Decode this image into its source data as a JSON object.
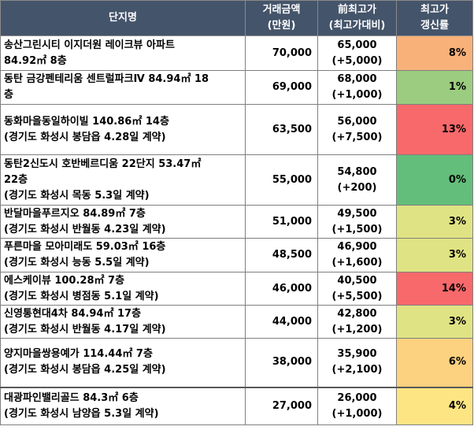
{
  "header": {
    "name": "단지명",
    "price_line1": "거래금액",
    "price_line2": "(만원)",
    "prev_line1": "前최고가",
    "prev_line2": "(최고가대비)",
    "rate_line1": "최고가",
    "rate_line2": "갱신률"
  },
  "rows": [
    {
      "name1": "송산그린시티 이지더원 레이크뷰 아파트",
      "name2": "84.92㎡ 8층",
      "price": "70,000",
      "prev1": "65,000",
      "prev2": "(+5,000)",
      "rate": "8%",
      "color": "#f8b179"
    },
    {
      "name1": "동탄 금강펜테리움 센트럴파크Ⅳ 84.94㎡ 18",
      "name2": "층",
      "price": "69,000",
      "prev1": "68,000",
      "prev2": "(+1,000)",
      "rate": "1%",
      "color": "#9bcc7f"
    },
    {
      "name1": "동화마을동일하이빌 140.86㎡ 14층",
      "name2": "(경기도 화성시 봉담읍 4.28일 계약)",
      "price": "63,500",
      "prev1": "56,000",
      "prev2": "(+7,500)",
      "rate": "13%",
      "color": "#f8696b"
    },
    {
      "name1": "동탄2신도시 호반베르디움 22단지 53.47㎡",
      "name2": "22층",
      "name3": "(경기도 화성시 목동 5.3일 계약)",
      "price": "55,000",
      "prev1": "54,800",
      "prev2": "(+200)",
      "rate": "0%",
      "color": "#63be7b"
    },
    {
      "name1": "반달마을푸르지오 84.89㎡ 7층",
      "name2": "(경기도 화성시 반월동 4.23일 계약)",
      "price": "51,000",
      "prev1": "49,500",
      "prev2": "(+1,500)",
      "rate": "3%",
      "color": "#e0e383"
    },
    {
      "name1": "푸른마을 모아미래도 59.03㎡ 16층",
      "name2": "(경기도 화성시 능동 5.5일 계약)",
      "price": "48,500",
      "prev1": "46,900",
      "prev2": "(+1,600)",
      "rate": "3%",
      "color": "#e0e383"
    },
    {
      "name1": "에스케이뷰 100.28㎡ 7층",
      "name2": "(경기도 화성시 병점동 5.1일 계약)",
      "price": "46,000",
      "prev1": "40,500",
      "prev2": "(+5,500)",
      "rate": "14%",
      "color": "#f8696b"
    },
    {
      "name1": "신영통현대4차 84.94㎡ 17층",
      "name2": "(경기도 화성시 반월동 4.17일 계약)",
      "price": "44,000",
      "prev1": "42,800",
      "prev2": "(+1,200)",
      "rate": "3%",
      "color": "#e0e383"
    },
    {
      "name1": "양지마을쌍용예가 114.44㎡ 7층",
      "name2": "(경기도 화성시 봉담읍 4.25일 계약)",
      "price": "38,000",
      "prev1": "35,900",
      "prev2": "(+2,100)",
      "rate": "6%",
      "color": "#fcd17f"
    },
    {
      "name1": "대광파인밸리골드 84.3㎡ 6층",
      "name2": "(경기도 화성시 남양읍 5.3일 계약)",
      "price": "27,000",
      "prev1": "26,000",
      "prev2": "(+1,000)",
      "rate": "4%",
      "color": "#fde583"
    }
  ]
}
